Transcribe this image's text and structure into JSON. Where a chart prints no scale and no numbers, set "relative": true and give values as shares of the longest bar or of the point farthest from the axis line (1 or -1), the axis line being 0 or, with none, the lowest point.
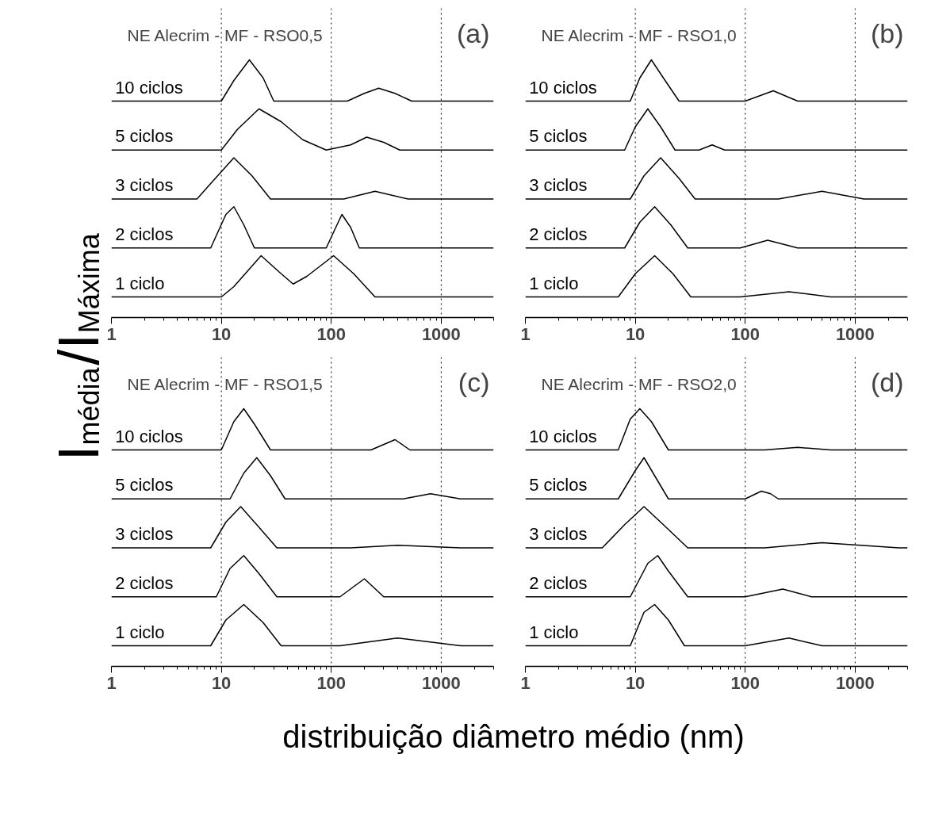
{
  "chart_data": [
    {
      "type": "line",
      "title": "NE Alecrim - MF - RSO0,5",
      "annotations": [
        "(a)"
      ],
      "ylabel": "I$_{média}$/I$_{Máxima}$",
      "xlabel": "distribuição diâmetro médio (nm)",
      "relative": true,
      "log": "x",
      "xlim": [
        1,
        3000
      ],
      "xticks": [
        1,
        10,
        100,
        1000
      ],
      "grid": false,
      "ref_lines": [
        {
          "axis": "x",
          "value": 10,
          "line_style": "dotted"
        },
        {
          "axis": "x",
          "value": 100,
          "line_style": "dotted"
        },
        {
          "axis": "x",
          "value": 1000,
          "line_style": "dotted"
        }
      ],
      "series": [
        {
          "name": "10 ciclos",
          "color": "#000000",
          "x": [
            1,
            10,
            13,
            18,
            24,
            30,
            140,
            200,
            270,
            380,
            540,
            3000
          ],
          "values": [
            0.84,
            0.84,
            0.92,
            1.0,
            0.93,
            0.84,
            0.84,
            0.87,
            0.89,
            0.87,
            0.84,
            0.84
          ]
        },
        {
          "name": "5 ciclos",
          "color": "#000000",
          "x": [
            1,
            10,
            14,
            22,
            35,
            55,
            90,
            150,
            210,
            300,
            420,
            3000
          ],
          "values": [
            0.65,
            0.65,
            0.73,
            0.81,
            0.76,
            0.69,
            0.65,
            0.67,
            0.7,
            0.68,
            0.65,
            0.65
          ]
        },
        {
          "name": "3 ciclos",
          "color": "#000000",
          "x": [
            1,
            6,
            8,
            13,
            19,
            28,
            130,
            250,
            500,
            3000
          ],
          "values": [
            0.46,
            0.46,
            0.52,
            0.62,
            0.55,
            0.46,
            0.46,
            0.49,
            0.46,
            0.46
          ]
        },
        {
          "name": "2 ciclos",
          "color": "#000000",
          "x": [
            1,
            8,
            11,
            13,
            16,
            20,
            90,
            110,
            125,
            150,
            180,
            3000
          ],
          "values": [
            0.27,
            0.27,
            0.4,
            0.43,
            0.36,
            0.27,
            0.27,
            0.35,
            0.4,
            0.35,
            0.27,
            0.27
          ]
        },
        {
          "name": "1 ciclo",
          "color": "#000000",
          "x": [
            1,
            10,
            13,
            23,
            35,
            45,
            60,
            105,
            160,
            250,
            3000
          ],
          "values": [
            0.08,
            0.08,
            0.12,
            0.24,
            0.17,
            0.13,
            0.16,
            0.24,
            0.17,
            0.08,
            0.08
          ]
        }
      ]
    },
    {
      "type": "line",
      "title": "NE Alecrim - MF - RSO1,0",
      "annotations": [
        "(b)"
      ],
      "relative": true,
      "log": "x",
      "xlim": [
        1,
        3000
      ],
      "xticks": [
        1,
        10,
        100,
        1000
      ],
      "grid": false,
      "ref_lines": [
        {
          "axis": "x",
          "value": 10,
          "line_style": "dotted"
        },
        {
          "axis": "x",
          "value": 100,
          "line_style": "dotted"
        },
        {
          "axis": "x",
          "value": 1000,
          "line_style": "dotted"
        }
      ],
      "series": [
        {
          "name": "10 ciclos",
          "color": "#000000",
          "x": [
            1,
            9,
            11,
            14,
            18,
            25,
            100,
            180,
            300,
            3000
          ],
          "values": [
            0.84,
            0.84,
            0.93,
            1.0,
            0.93,
            0.84,
            0.84,
            0.88,
            0.84,
            0.84
          ]
        },
        {
          "name": "5 ciclos",
          "color": "#000000",
          "x": [
            1,
            8,
            10,
            13,
            17,
            23,
            38,
            50,
            65,
            3000
          ],
          "values": [
            0.65,
            0.65,
            0.74,
            0.81,
            0.74,
            0.65,
            0.65,
            0.67,
            0.65,
            0.65
          ]
        },
        {
          "name": "3 ciclos",
          "color": "#000000",
          "x": [
            1,
            9,
            12,
            17,
            25,
            35,
            200,
            500,
            1200,
            3000
          ],
          "values": [
            0.46,
            0.46,
            0.55,
            0.62,
            0.54,
            0.46,
            0.46,
            0.49,
            0.46,
            0.46
          ]
        },
        {
          "name": "2 ciclos",
          "color": "#000000",
          "x": [
            1,
            8,
            11,
            15,
            21,
            30,
            90,
            160,
            300,
            3000
          ],
          "values": [
            0.27,
            0.27,
            0.37,
            0.43,
            0.36,
            0.27,
            0.27,
            0.3,
            0.27,
            0.27
          ]
        },
        {
          "name": "1 ciclo",
          "color": "#000000",
          "x": [
            1,
            7,
            10,
            15,
            22,
            32,
            90,
            250,
            600,
            3000
          ],
          "values": [
            0.08,
            0.08,
            0.17,
            0.24,
            0.17,
            0.08,
            0.08,
            0.1,
            0.08,
            0.08
          ]
        }
      ]
    },
    {
      "type": "line",
      "title": "NE Alecrim - MF - RSO1,5",
      "annotations": [
        "(c)"
      ],
      "relative": true,
      "log": "x",
      "xlim": [
        1,
        3000
      ],
      "xticks": [
        1,
        10,
        100,
        1000
      ],
      "grid": false,
      "ref_lines": [
        {
          "axis": "x",
          "value": 10,
          "line_style": "dotted"
        },
        {
          "axis": "x",
          "value": 100,
          "line_style": "dotted"
        },
        {
          "axis": "x",
          "value": 1000,
          "line_style": "dotted"
        }
      ],
      "series": [
        {
          "name": "10 ciclos",
          "color": "#000000",
          "x": [
            1,
            10,
            13,
            16,
            20,
            28,
            230,
            380,
            520,
            3000
          ],
          "values": [
            0.84,
            0.84,
            0.95,
            1.0,
            0.94,
            0.84,
            0.84,
            0.88,
            0.84,
            0.84
          ]
        },
        {
          "name": "5 ciclos",
          "color": "#000000",
          "x": [
            1,
            12,
            16,
            21,
            28,
            38,
            450,
            800,
            1500,
            3000
          ],
          "values": [
            0.65,
            0.65,
            0.75,
            0.81,
            0.74,
            0.65,
            0.65,
            0.67,
            0.65,
            0.65
          ]
        },
        {
          "name": "3 ciclos",
          "color": "#000000",
          "x": [
            1,
            8,
            11,
            15,
            22,
            32,
            150,
            400,
            1500,
            3000
          ],
          "values": [
            0.46,
            0.46,
            0.56,
            0.62,
            0.54,
            0.46,
            0.46,
            0.47,
            0.46,
            0.46
          ]
        },
        {
          "name": "2 ciclos",
          "color": "#000000",
          "x": [
            1,
            9,
            12,
            16,
            22,
            32,
            120,
            200,
            300,
            3000
          ],
          "values": [
            0.27,
            0.27,
            0.38,
            0.43,
            0.36,
            0.27,
            0.27,
            0.34,
            0.27,
            0.27
          ]
        },
        {
          "name": "1 ciclo",
          "color": "#000000",
          "x": [
            1,
            8,
            11,
            16,
            24,
            35,
            120,
            400,
            1500,
            3000
          ],
          "values": [
            0.08,
            0.08,
            0.18,
            0.24,
            0.17,
            0.08,
            0.08,
            0.11,
            0.08,
            0.08
          ]
        }
      ]
    },
    {
      "type": "line",
      "title": "NE Alecrim - MF - RSO2,0",
      "annotations": [
        "(d)"
      ],
      "relative": true,
      "log": "x",
      "xlim": [
        1,
        3000
      ],
      "xticks": [
        1,
        10,
        100,
        1000
      ],
      "grid": false,
      "ref_lines": [
        {
          "axis": "x",
          "value": 10,
          "line_style": "dotted"
        },
        {
          "axis": "x",
          "value": 100,
          "line_style": "dotted"
        },
        {
          "axis": "x",
          "value": 1000,
          "line_style": "dotted"
        }
      ],
      "series": [
        {
          "name": "10 ciclos",
          "color": "#000000",
          "x": [
            1,
            7,
            9,
            11,
            14,
            20,
            150,
            300,
            600,
            3000
          ],
          "values": [
            0.84,
            0.84,
            0.96,
            1.0,
            0.95,
            0.84,
            0.84,
            0.85,
            0.84,
            0.84
          ]
        },
        {
          "name": "5 ciclos",
          "color": "#000000",
          "x": [
            1,
            7,
            10,
            12,
            15,
            20,
            100,
            140,
            170,
            200,
            3000
          ],
          "values": [
            0.65,
            0.65,
            0.76,
            0.81,
            0.74,
            0.65,
            0.65,
            0.68,
            0.67,
            0.65,
            0.65
          ]
        },
        {
          "name": "3 ciclos",
          "color": "#000000",
          "x": [
            1,
            5,
            8,
            12,
            18,
            30,
            150,
            500,
            2500,
            3000
          ],
          "values": [
            0.46,
            0.46,
            0.55,
            0.62,
            0.55,
            0.46,
            0.46,
            0.48,
            0.46,
            0.46
          ]
        },
        {
          "name": "2 ciclos",
          "color": "#000000",
          "x": [
            1,
            9,
            13,
            16,
            20,
            30,
            100,
            220,
            400,
            3000
          ],
          "values": [
            0.27,
            0.27,
            0.4,
            0.43,
            0.37,
            0.27,
            0.27,
            0.3,
            0.27,
            0.27
          ]
        },
        {
          "name": "1 ciclo",
          "color": "#000000",
          "x": [
            1,
            9,
            12,
            15,
            20,
            28,
            100,
            250,
            500,
            3000
          ],
          "values": [
            0.08,
            0.08,
            0.21,
            0.24,
            0.18,
            0.08,
            0.08,
            0.11,
            0.08,
            0.08
          ]
        }
      ]
    }
  ]
}
